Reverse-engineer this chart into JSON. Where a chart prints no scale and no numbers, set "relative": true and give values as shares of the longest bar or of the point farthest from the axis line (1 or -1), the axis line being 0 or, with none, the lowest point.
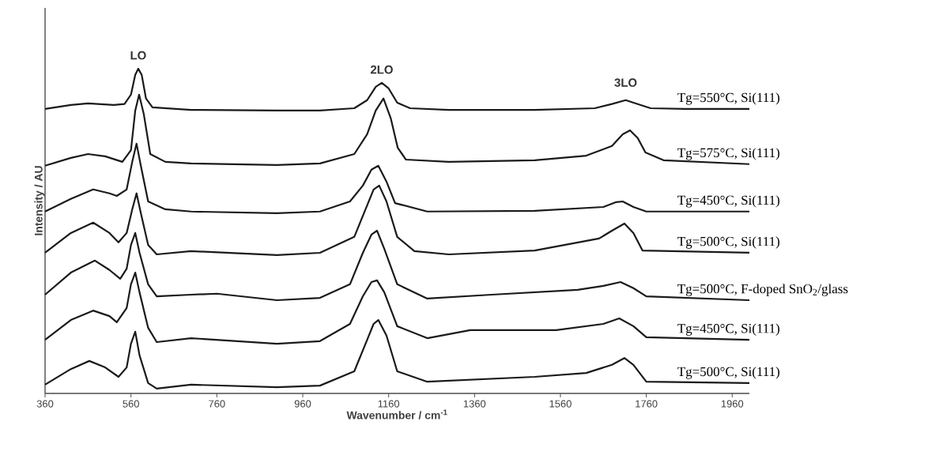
{
  "chart_data": {
    "type": "line",
    "relative": true,
    "xlabel": "Wavenumber / cm$^{-1}$",
    "ylabel": "Intensity / AU",
    "xlim": [
      360,
      2000
    ],
    "xticks": [
      360,
      560,
      760,
      960,
      1160,
      1360,
      1560,
      1760,
      1960
    ],
    "annotations": [
      {
        "text": "LO",
        "x": 577,
        "y": 1.0
      },
      {
        "text": "2LO",
        "x": 1144,
        "y": 0.956
      },
      {
        "text": "3LO",
        "x": 1712,
        "y": 0.916
      }
    ],
    "series": [
      {
        "name": "Tg=550°C, Si(111)",
        "color": "#1a1a1a",
        "x": [
          360,
          420,
          460,
          520,
          545,
          560,
          570,
          577,
          585,
          595,
          610,
          700,
          900,
          1000,
          1080,
          1110,
          1130,
          1144,
          1160,
          1180,
          1210,
          1300,
          1500,
          1640,
          1680,
          1712,
          1740,
          1770,
          1850,
          2000
        ],
        "values": [
          0.876,
          0.888,
          0.893,
          0.888,
          0.891,
          0.92,
          0.981,
          1.0,
          0.981,
          0.908,
          0.881,
          0.873,
          0.871,
          0.871,
          0.878,
          0.903,
          0.944,
          0.956,
          0.939,
          0.895,
          0.878,
          0.873,
          0.873,
          0.878,
          0.891,
          0.903,
          0.891,
          0.878,
          0.876,
          0.876
        ]
      },
      {
        "name": "Tg=575°C, Si(111)",
        "color": "#1a1a1a",
        "x": [
          360,
          420,
          460,
          500,
          540,
          560,
          570,
          579,
          590,
          605,
          640,
          700,
          900,
          1000,
          1080,
          1110,
          1130,
          1148,
          1165,
          1181,
          1200,
          1300,
          1500,
          1620,
          1680,
          1705,
          1722,
          1740,
          1758,
          1800,
          2000
        ],
        "values": [
          0.701,
          0.725,
          0.737,
          0.73,
          0.713,
          0.749,
          0.871,
          0.92,
          0.859,
          0.737,
          0.713,
          0.708,
          0.703,
          0.708,
          0.737,
          0.798,
          0.871,
          0.908,
          0.847,
          0.757,
          0.72,
          0.713,
          0.718,
          0.732,
          0.762,
          0.798,
          0.81,
          0.786,
          0.742,
          0.718,
          0.706
        ]
      },
      {
        "name": "Tg=450°C, Si(111)",
        "color": "#1a1a1a",
        "x": [
          360,
          420,
          472,
          510,
          527,
          550,
          563,
          573,
          583,
          600,
          640,
          700,
          900,
          1000,
          1070,
          1100,
          1120,
          1136,
          1155,
          1175,
          1250,
          1500,
          1660,
          1690,
          1705,
          1730,
          1760,
          2000
        ],
        "values": [
          0.56,
          0.599,
          0.628,
          0.616,
          0.608,
          0.628,
          0.713,
          0.769,
          0.701,
          0.591,
          0.567,
          0.56,
          0.555,
          0.56,
          0.591,
          0.64,
          0.689,
          0.701,
          0.652,
          0.586,
          0.56,
          0.562,
          0.574,
          0.589,
          0.591,
          0.574,
          0.56,
          0.56
        ]
      },
      {
        "name": "Tg=500°C, Si(111)",
        "color": "#1a1a1a",
        "x": [
          360,
          420,
          472,
          510,
          531,
          550,
          563,
          573,
          583,
          600,
          620,
          700,
          900,
          1000,
          1080,
          1110,
          1125,
          1138,
          1155,
          1180,
          1220,
          1300,
          1500,
          1650,
          1680,
          1709,
          1730,
          1751,
          2000
        ],
        "values": [
          0.433,
          0.494,
          0.526,
          0.494,
          0.465,
          0.494,
          0.567,
          0.616,
          0.555,
          0.457,
          0.428,
          0.438,
          0.426,
          0.433,
          0.482,
          0.579,
          0.628,
          0.64,
          0.591,
          0.482,
          0.438,
          0.428,
          0.44,
          0.477,
          0.501,
          0.523,
          0.494,
          0.44,
          0.433
        ]
      },
      {
        "name": "Tg=500°C, F-doped SnO$_{2}$/glass",
        "color": "#1a1a1a",
        "x": [
          360,
          420,
          476,
          510,
          535,
          550,
          560,
          570,
          580,
          600,
          620,
          700,
          760,
          900,
          1000,
          1070,
          1100,
          1120,
          1133,
          1150,
          1180,
          1250,
          1400,
          1600,
          1660,
          1700,
          1730,
          1760,
          2000
        ],
        "values": [
          0.304,
          0.372,
          0.409,
          0.38,
          0.353,
          0.384,
          0.457,
          0.494,
          0.433,
          0.336,
          0.299,
          0.304,
          0.307,
          0.287,
          0.294,
          0.336,
          0.433,
          0.489,
          0.501,
          0.445,
          0.336,
          0.292,
          0.304,
          0.319,
          0.331,
          0.343,
          0.324,
          0.299,
          0.287
        ]
      },
      {
        "name": "Tg=450°C, Si(111)",
        "color": "#1a1a1a",
        "x": [
          360,
          420,
          472,
          510,
          527,
          550,
          560,
          570,
          580,
          600,
          620,
          700,
          900,
          1000,
          1070,
          1100,
          1120,
          1133,
          1150,
          1180,
          1250,
          1350,
          1550,
          1660,
          1697,
          1730,
          1760,
          2000
        ],
        "values": [
          0.165,
          0.226,
          0.255,
          0.238,
          0.219,
          0.263,
          0.336,
          0.372,
          0.311,
          0.202,
          0.158,
          0.17,
          0.153,
          0.161,
          0.214,
          0.299,
          0.343,
          0.348,
          0.311,
          0.207,
          0.17,
          0.195,
          0.195,
          0.214,
          0.231,
          0.207,
          0.173,
          0.165
        ]
      },
      {
        "name": "Tg=500°C, Si(111)",
        "color": "#1a1a1a",
        "x": [
          360,
          420,
          463,
          500,
          531,
          550,
          560,
          570,
          580,
          600,
          620,
          700,
          900,
          1000,
          1080,
          1110,
          1125,
          1136,
          1155,
          1180,
          1250,
          1500,
          1620,
          1680,
          1709,
          1730,
          1760,
          2000
        ],
        "values": [
          0.027,
          0.075,
          0.1,
          0.08,
          0.051,
          0.08,
          0.153,
          0.19,
          0.117,
          0.032,
          0.015,
          0.027,
          0.019,
          0.024,
          0.068,
          0.165,
          0.214,
          0.226,
          0.178,
          0.068,
          0.036,
          0.051,
          0.063,
          0.088,
          0.109,
          0.088,
          0.036,
          0.032
        ]
      }
    ]
  }
}
